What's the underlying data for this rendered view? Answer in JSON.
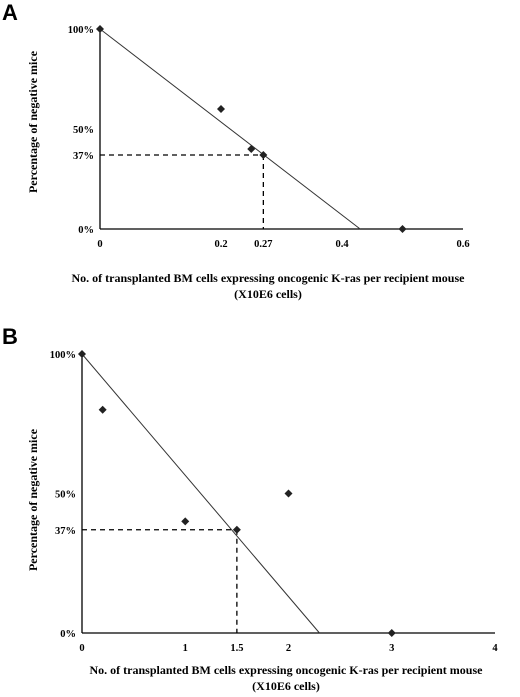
{
  "chart_data": [
    {
      "type": "scatter",
      "panel": "A",
      "ylabel": "Percentage of negative mice",
      "xlabel": "No. of transplanted BM cells expressing oncogenic K-ras per recipient mouse",
      "xlabel_line2": "(X10E6 cells)",
      "xlim": [
        0,
        0.6
      ],
      "ylim": [
        0,
        100
      ],
      "x_ticks": [
        {
          "value": 0,
          "label": "0"
        },
        {
          "value": 0.2,
          "label": "0.2"
        },
        {
          "value": 0.27,
          "label": "0.27"
        },
        {
          "value": 0.4,
          "label": "0.4"
        },
        {
          "value": 0.6,
          "label": "0.6"
        }
      ],
      "y_ticks": [
        {
          "value": 0,
          "label": "0%"
        },
        {
          "value": 37,
          "label": "37%"
        },
        {
          "value": 50,
          "label": "50%"
        },
        {
          "value": 100,
          "label": "100%"
        }
      ],
      "points": [
        {
          "x": 0,
          "y": 100
        },
        {
          "x": 0.2,
          "y": 60
        },
        {
          "x": 0.25,
          "y": 40
        },
        {
          "x": 0.27,
          "y": 37
        },
        {
          "x": 0.5,
          "y": 0
        }
      ],
      "fit_line": [
        {
          "x": 0,
          "y": 100
        },
        {
          "x": 0.43,
          "y": 0
        }
      ],
      "reference": {
        "x": 0.27,
        "y": 37
      },
      "grid": false
    },
    {
      "type": "scatter",
      "panel": "B",
      "ylabel": "Percentage of negative mice",
      "xlabel": "No. of transplanted BM cells expressing oncogenic K-ras per recipient mouse",
      "xlabel_line2": "(X10E6 cells)",
      "xlim": [
        0,
        4
      ],
      "ylim": [
        0,
        100
      ],
      "x_ticks": [
        {
          "value": 0,
          "label": "0"
        },
        {
          "value": 1,
          "label": "1"
        },
        {
          "value": 1.5,
          "label": "1.5"
        },
        {
          "value": 2,
          "label": "2"
        },
        {
          "value": 3,
          "label": "3"
        },
        {
          "value": 4,
          "label": "4"
        }
      ],
      "y_ticks": [
        {
          "value": 0,
          "label": "0%"
        },
        {
          "value": 37,
          "label": "37%"
        },
        {
          "value": 50,
          "label": "50%"
        },
        {
          "value": 100,
          "label": "100%"
        }
      ],
      "points": [
        {
          "x": 0,
          "y": 100
        },
        {
          "x": 0.2,
          "y": 80
        },
        {
          "x": 1,
          "y": 40
        },
        {
          "x": 1.5,
          "y": 37
        },
        {
          "x": 2,
          "y": 50
        },
        {
          "x": 3,
          "y": 0
        }
      ],
      "fit_line": [
        {
          "x": 0,
          "y": 100
        },
        {
          "x": 2.3,
          "y": 0
        }
      ],
      "reference": {
        "x": 1.5,
        "y": 37
      },
      "grid": false
    }
  ]
}
